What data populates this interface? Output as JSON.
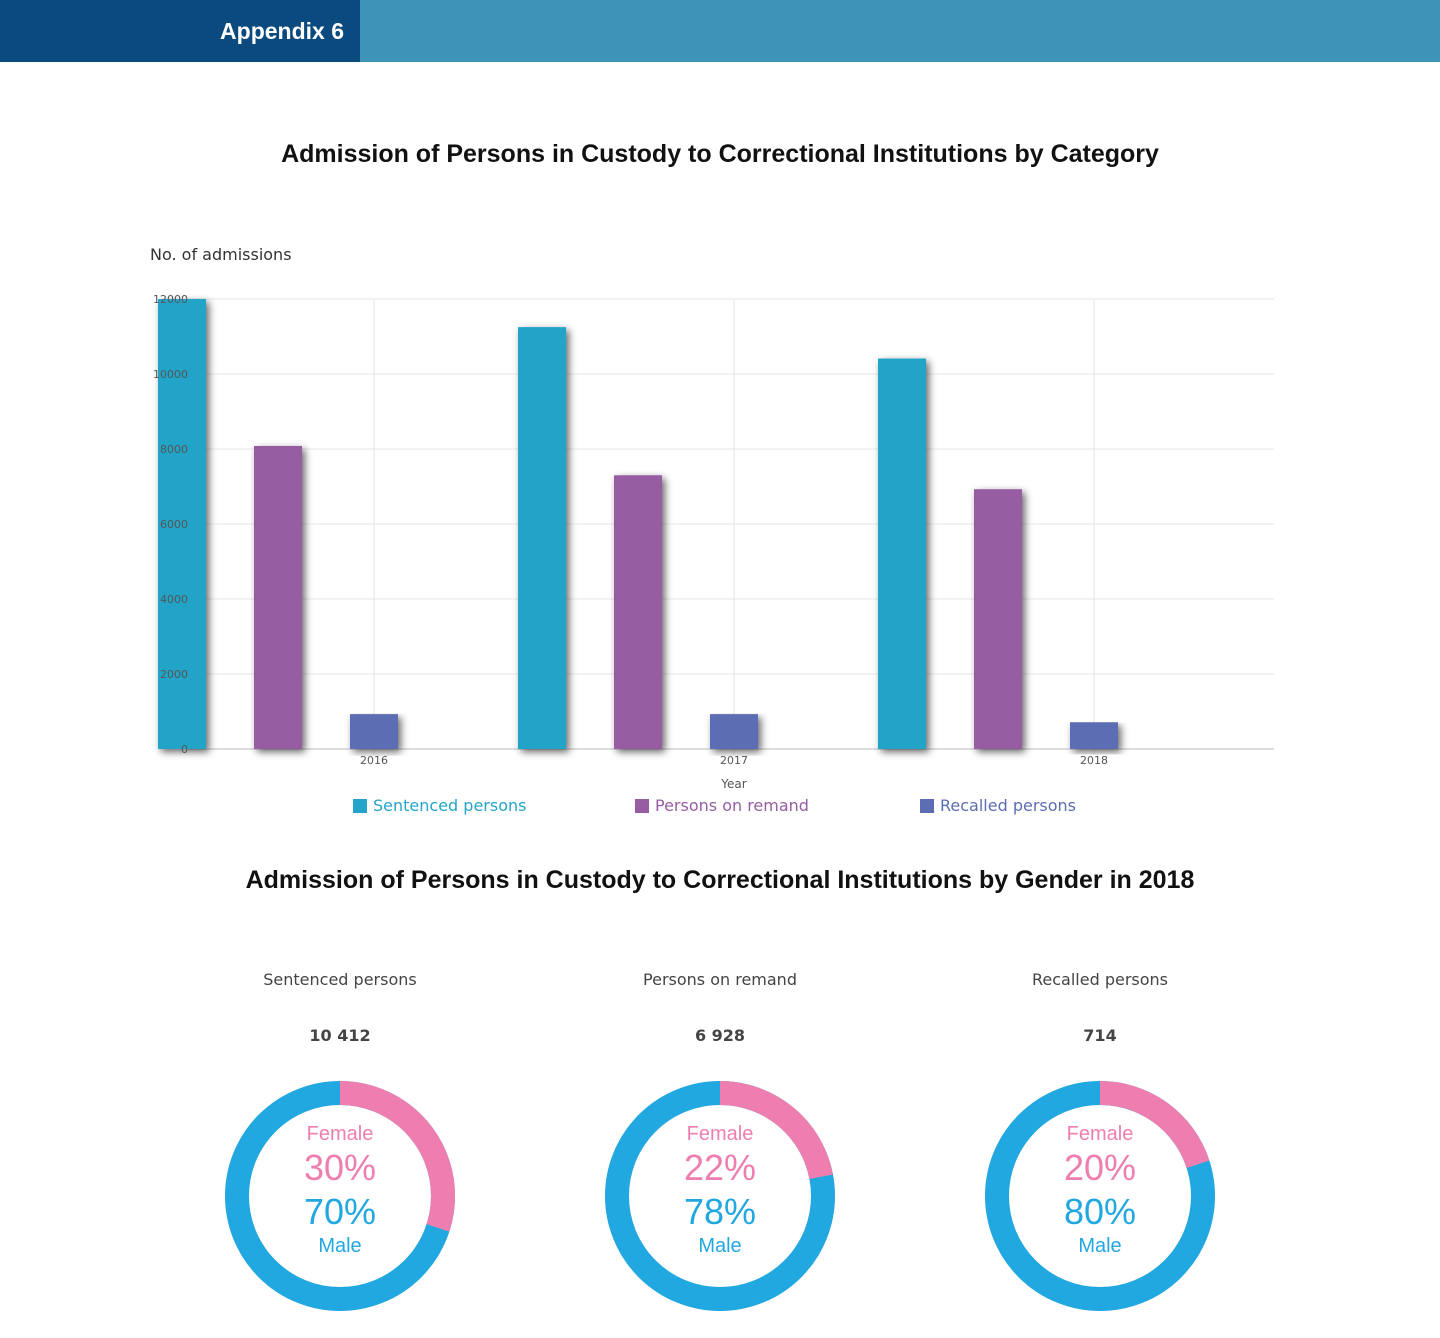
{
  "header": {
    "tag": "Appendix 6"
  },
  "bar_section": {
    "title": "Admission of Persons in Custody to Correctional Institutions by Category"
  },
  "donut_section": {
    "title": "Admission of Persons in Custody to Correctional Institutions by Gender in 2018"
  },
  "chart_data": [
    {
      "type": "bar",
      "title": "Admission of Persons in Custody to Correctional Institutions by Category",
      "ylabel": "No. of admissions",
      "xlabel": "Year",
      "categories": [
        "2016",
        "2017",
        "2018"
      ],
      "ylim": [
        0,
        12000
      ],
      "yticks": [
        0,
        2000,
        4000,
        6000,
        8000,
        10000,
        12000
      ],
      "grid": true,
      "legend_position": "bottom",
      "series": [
        {
          "name": "Sentenced persons",
          "color": "#23a4c8",
          "values": [
            12000,
            11250,
            10412
          ]
        },
        {
          "name": "Persons on remand",
          "color": "#965da2",
          "values": [
            8080,
            7300,
            6928
          ]
        },
        {
          "name": "Recalled persons",
          "color": "#5d6db4",
          "values": [
            930,
            930,
            714
          ]
        }
      ]
    },
    {
      "type": "pie",
      "title": "Admission of Persons in Custody to Correctional Institutions by Gender in 2018",
      "panels": [
        {
          "label": "Sentenced persons",
          "total": "10 412",
          "female_label": "Female",
          "male_label": "Male",
          "female_pct": 30,
          "male_pct": 70,
          "female_text": "30%",
          "male_text": "70%"
        },
        {
          "label": "Persons on remand",
          "total": "6 928",
          "female_label": "Female",
          "male_label": "Male",
          "female_pct": 22,
          "male_pct": 78,
          "female_text": "22%",
          "male_text": "78%"
        },
        {
          "label": "Recalled persons",
          "total": "714",
          "female_label": "Female",
          "male_label": "Male",
          "female_pct": 20,
          "male_pct": 80,
          "female_text": "20%",
          "male_text": "80%"
        }
      ],
      "colors": {
        "female": "#ef7eb0",
        "male": "#22a8e0"
      }
    }
  ]
}
